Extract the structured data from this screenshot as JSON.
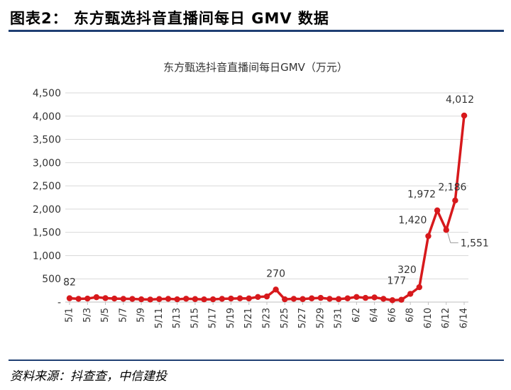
{
  "figure": {
    "header_title": "图表2： 东方甄选抖音直播间每日 GMV 数据",
    "source": "资料来源：抖查查，中信建投"
  },
  "chart_data": {
    "type": "line",
    "title": "东方甄选抖音直播间每日GMV（万元）",
    "xlabel": "",
    "ylabel": "",
    "ylim": [
      0,
      4500
    ],
    "yticks": [
      0,
      500,
      1000,
      1500,
      2000,
      2500,
      3000,
      3500,
      4000,
      4500
    ],
    "ytick_labels": [
      "-",
      "500",
      "1,000",
      "1,500",
      "2,000",
      "2,500",
      "3,000",
      "3,500",
      "4,000",
      "4,500"
    ],
    "grid": true,
    "legend": "none",
    "color": "#d7191c",
    "x": [
      "5/1",
      "5/2",
      "5/3",
      "5/4",
      "5/5",
      "5/6",
      "5/7",
      "5/8",
      "5/9",
      "5/10",
      "5/11",
      "5/12",
      "5/13",
      "5/14",
      "5/15",
      "5/16",
      "5/17",
      "5/18",
      "5/19",
      "5/20",
      "5/21",
      "5/22",
      "5/23",
      "5/24",
      "5/25",
      "5/26",
      "5/27",
      "5/28",
      "5/29",
      "5/30",
      "5/31",
      "6/1",
      "6/2",
      "6/3",
      "6/4",
      "6/5",
      "6/6",
      "6/7",
      "6/8",
      "6/9",
      "6/10",
      "6/11",
      "6/12",
      "6/13",
      "6/14"
    ],
    "x_tick_labels": [
      "5/1",
      "5/3",
      "5/5",
      "5/7",
      "5/9",
      "5/11",
      "5/13",
      "5/15",
      "5/17",
      "5/19",
      "5/21",
      "5/23",
      "5/25",
      "5/27",
      "5/29",
      "5/31",
      "6/2",
      "6/4",
      "6/6",
      "6/8",
      "6/10",
      "6/12",
      "6/14"
    ],
    "values": [
      82,
      70,
      75,
      105,
      85,
      75,
      70,
      68,
      60,
      55,
      65,
      70,
      60,
      72,
      65,
      58,
      60,
      70,
      75,
      80,
      78,
      110,
      120,
      270,
      60,
      70,
      65,
      80,
      90,
      70,
      65,
      80,
      110,
      90,
      100,
      70,
      40,
      50,
      177,
      320,
      1420,
      1972,
      1551,
      2186,
      4012
    ],
    "data_labels": [
      {
        "x": "5/1",
        "text": "82"
      },
      {
        "x": "5/24",
        "text": "270"
      },
      {
        "x": "6/8",
        "text": "177"
      },
      {
        "x": "6/9",
        "text": "320"
      },
      {
        "x": "6/10",
        "text": "1,420"
      },
      {
        "x": "6/11",
        "text": "1,972"
      },
      {
        "x": "6/12",
        "text": "1,551"
      },
      {
        "x": "6/13",
        "text": "2,186"
      },
      {
        "x": "6/14",
        "text": "4,012"
      }
    ]
  }
}
